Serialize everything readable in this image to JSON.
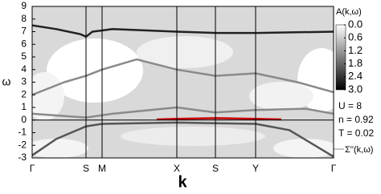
{
  "chart_data": {
    "type": "line",
    "x_label": "k",
    "y_label": "ω",
    "xlim": [
      0,
      375
    ],
    "xticks": [
      {
        "value": 0,
        "label": "Γ"
      },
      {
        "value": 67,
        "label": "S"
      },
      {
        "value": 87,
        "label": "M"
      },
      {
        "value": 180,
        "label": "X"
      },
      {
        "value": 228,
        "label": "S"
      },
      {
        "value": 278,
        "label": "Y"
      },
      {
        "value": 375,
        "label": "Γ"
      }
    ],
    "ylim": [
      -3,
      9
    ],
    "yticks": [
      -3,
      -2,
      -1,
      0,
      1,
      2,
      3,
      4,
      5,
      6,
      7,
      8,
      9
    ],
    "colorbar_label": "A(k,ω)",
    "zlim": [
      0,
      3
    ],
    "zticks": [
      {
        "value": 0,
        "label": "0.0"
      },
      0.6,
      1.2,
      1.8,
      2.4,
      {
        "value": 3,
        "label": "3.0"
      }
    ],
    "annotations": [
      "U = 8",
      "n = 0.92",
      "T = 0.02"
    ],
    "legend_label": "Σ''(k,ω)",
    "series": [
      {
        "color": "#222222",
        "x": [
          0,
          30,
          60,
          67,
          75,
          100,
          180,
          230,
          280,
          375
        ],
        "values": [
          7.5,
          7.2,
          6.8,
          6.6,
          7.0,
          7.2,
          7.0,
          6.9,
          6.9,
          7.0
        ]
      },
      {
        "color": "#8a8a8a",
        "x": [
          0,
          40,
          67,
          87,
          130,
          180,
          228,
          278,
          330,
          375
        ],
        "values": [
          2.0,
          3.0,
          3.5,
          4.0,
          4.8,
          4.0,
          3.5,
          3.7,
          3.0,
          2.2
        ]
      },
      {
        "color": "#8a8a8a",
        "x": [
          0,
          67,
          100,
          180,
          228,
          278,
          340,
          375
        ],
        "values": [
          0.5,
          0.2,
          0.5,
          1.0,
          0.6,
          0.8,
          0.9,
          0.5
        ]
      },
      {
        "color": "#555555",
        "x": [
          0,
          30,
          67,
          87,
          180,
          278,
          320,
          375
        ],
        "values": [
          -2.8,
          -1.5,
          -0.5,
          -0.3,
          -0.2,
          -0.3,
          -0.8,
          -2.9
        ]
      },
      {
        "color": "#cc0000",
        "x": [
          155,
          180,
          230,
          278,
          310
        ],
        "values": [
          0.05,
          0.1,
          0.15,
          0.1,
          0.05
        ]
      }
    ]
  }
}
